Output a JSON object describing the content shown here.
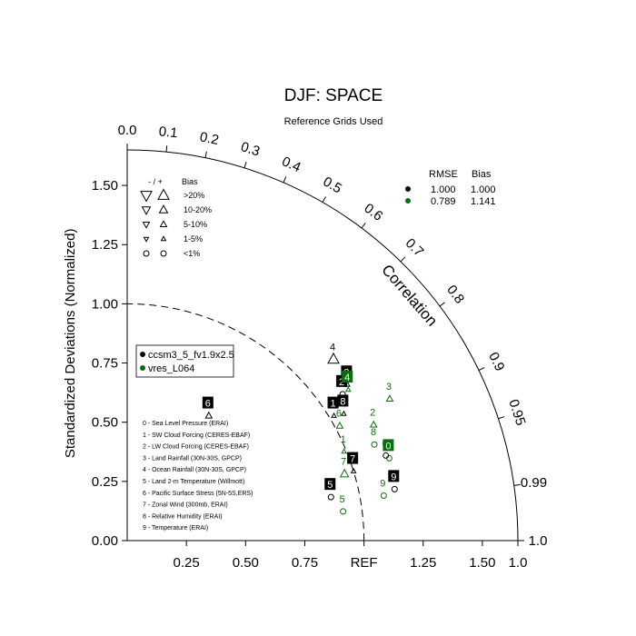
{
  "chart_data": {
    "type": "scatter",
    "subtype": "taylor-diagram",
    "title": "DJF: SPACE",
    "subtitle": "Reference Grids Used",
    "ylabel": "Standardized Deviations (Normalized)",
    "corr_label": "Correlation",
    "ref_label": "REF",
    "ylim": [
      0,
      1.65
    ],
    "xlim": [
      0,
      1.65
    ],
    "y_ticks": [
      "0.00",
      "0.25",
      "0.50",
      "0.75",
      "1.00",
      "1.25",
      "1.50"
    ],
    "y_tick_values": [
      0,
      0.25,
      0.5,
      0.75,
      1.0,
      1.25,
      1.5
    ],
    "x_ticks": [
      "0.25",
      "0.50",
      "0.75",
      "1.25",
      "1.50",
      "1.0"
    ],
    "x_tick_values": [
      0.25,
      0.5,
      0.75,
      1.25,
      1.5,
      1.65
    ],
    "corr_ticks": [
      "0.0",
      "0.1",
      "0.2",
      "0.3",
      "0.4",
      "0.5",
      "0.6",
      "0.7",
      "0.8",
      "0.9",
      "0.95",
      "0.99",
      "1.0"
    ],
    "corr_tick_values": [
      0.0,
      0.1,
      0.2,
      0.3,
      0.4,
      0.5,
      0.6,
      0.7,
      0.8,
      0.9,
      0.95,
      0.99,
      1.0
    ],
    "ref_arc_radius": 1.0,
    "series": [
      {
        "name": "ccsm3_5_fv1.9x2.5",
        "color": "#000000",
        "rmse": "1.000",
        "bias": "1.000",
        "points": [
          {
            "id": "0",
            "std": 1.15,
            "corr": 0.95,
            "bias_class": "<1%"
          },
          {
            "id": "1",
            "std": 1.02,
            "corr": 0.856,
            "bias_class": "1-5%"
          },
          {
            "id": "2",
            "std": 1.1,
            "corr": 0.827,
            "bias_class": "<1%"
          },
          {
            "id": "3",
            "std": 1.14,
            "corr": 0.816,
            "bias_class": "1-5%"
          },
          {
            "id": "4",
            "std": 1.16,
            "corr": 0.751,
            "bias_class": ">20%"
          },
          {
            "id": "5",
            "std": 0.88,
            "corr": 0.978,
            "bias_class": "<1%"
          },
          {
            "id": "6",
            "std": 0.63,
            "corr": 0.547,
            "bias_class": "5-10%"
          },
          {
            "id": "7",
            "std": 1.0,
            "corr": 0.956,
            "bias_class": "1-5%"
          },
          {
            "id": "8",
            "std": 1.06,
            "corr": 0.863,
            "bias_class": "1-5%"
          },
          {
            "id": "9",
            "std": 1.15,
            "corr": 0.982,
            "bias_class": "<1%"
          }
        ]
      },
      {
        "name": "vres_L064",
        "color": "#0a6e0a",
        "rmse": "0.789",
        "bias": "1.141",
        "points": [
          {
            "id": "0",
            "std": 1.16,
            "corr": 0.954,
            "bias_class": "<1%"
          },
          {
            "id": "1",
            "std": 0.99,
            "corr": 0.925,
            "bias_class": "1-5%"
          },
          {
            "id": "2",
            "std": 1.15,
            "corr": 0.905,
            "bias_class": "5-10%"
          },
          {
            "id": "3",
            "std": 1.26,
            "corr": 0.88,
            "bias_class": "5-10%"
          },
          {
            "id": "4",
            "std": 1.13,
            "corr": 0.826,
            "bias_class": "1-5%"
          },
          {
            "id": "5",
            "std": 0.92,
            "corr": 0.991,
            "bias_class": "<1%"
          },
          {
            "id": "6",
            "std": 1.02,
            "corr": 0.88,
            "bias_class": "5-10%"
          },
          {
            "id": "7",
            "std": 0.96,
            "corr": 0.956,
            "bias_class": "10-20%"
          },
          {
            "id": "8",
            "std": 1.12,
            "corr": 0.932,
            "bias_class": "<1%"
          },
          {
            "id": "9",
            "std": 1.1,
            "corr": 0.985,
            "bias_class": "<1%"
          }
        ]
      }
    ],
    "bias_legend": {
      "header_sign": "- / +",
      "header_bias": "Bias",
      "rows": [
        ">20%",
        "10-20%",
        "5-10%",
        "1-5%",
        "<1%"
      ]
    },
    "stats_legend": {
      "header_rmse": "RMSE",
      "header_bias": "Bias"
    },
    "case_legend": [
      "0 - Sea Level Pressure (ERAI)",
      "1 - SW Cloud Forcing (CERES-EBAF)",
      "2 - LW Cloud Forcing (CERES-EBAF)",
      "3 - Land Rainfall (30N-30S, GPCP)",
      "4 - Ocean Rainfall (30N-30S, GPCP)",
      "5 - Land 2-m Temperature (Willmott)",
      "6 - Pacific Surface Stress (5N-5S,ERS)",
      "7 - Zonal Wind (300mb, ERAI)",
      "8 - Relative Humidity (ERAI)",
      "9 - Temperature (ERAI)"
    ]
  }
}
